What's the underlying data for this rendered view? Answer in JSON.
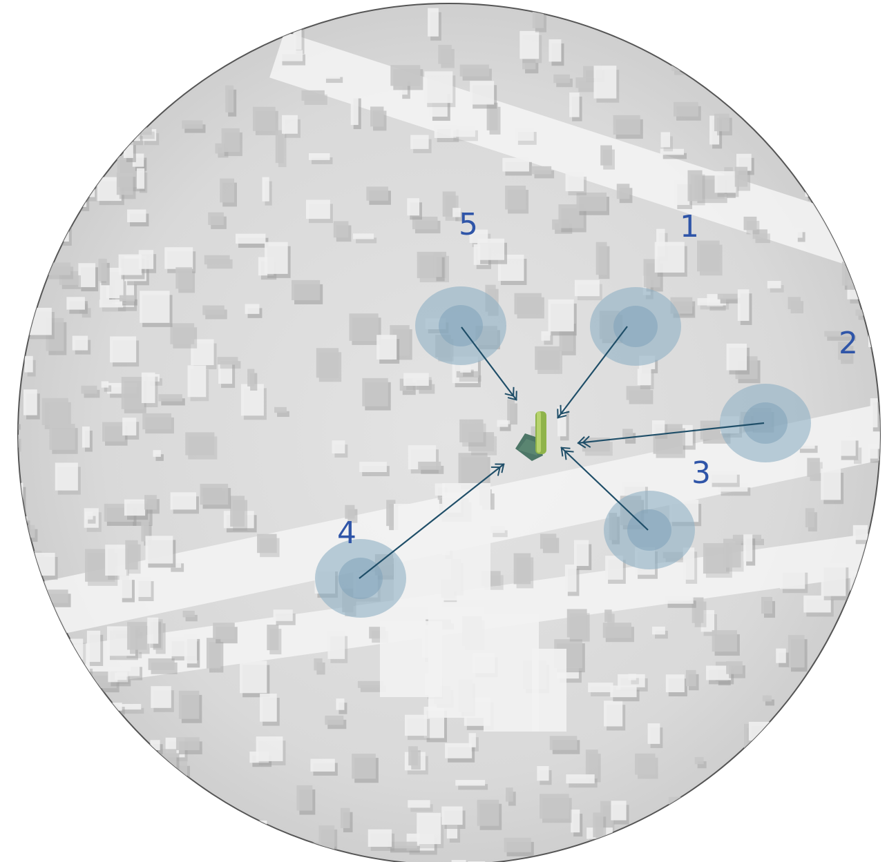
{
  "colors": {
    "map_base": "#dcdcdc",
    "map_light": "#f4f4f4",
    "building_shadow": "#9e9e9e",
    "building_face": "#c6c6c6",
    "circle_outer": "#8fb0c4",
    "circle_inner": "#7fa3b9",
    "arrow": "#1f4e68",
    "label": "#2f55a8",
    "target_green": "#8fb34a",
    "target_dark": "#3d6a5a"
  },
  "target": {
    "name": "center-building"
  },
  "viewpoints": [
    {
      "label": "1"
    },
    {
      "label": "2"
    },
    {
      "label": "3"
    },
    {
      "label": "4"
    },
    {
      "label": "5"
    }
  ]
}
